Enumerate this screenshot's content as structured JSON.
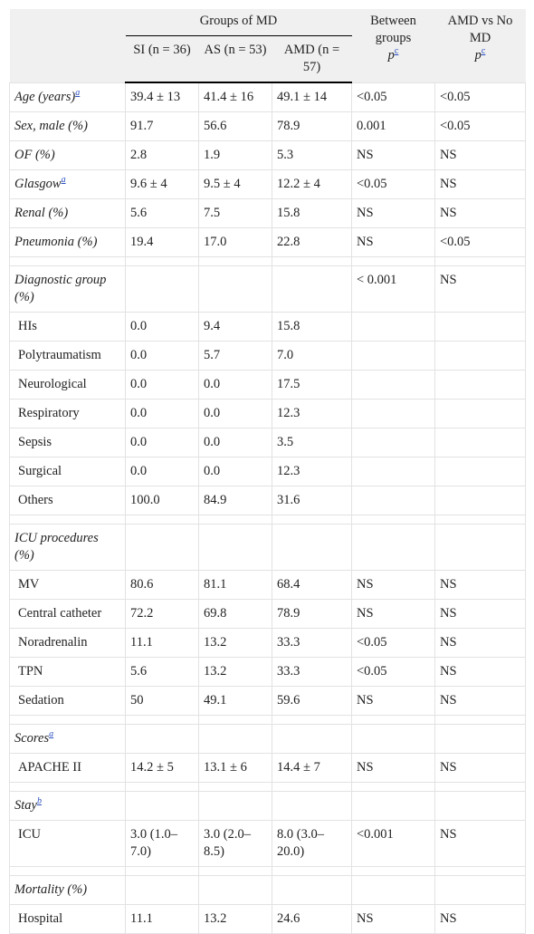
{
  "header": {
    "group_title": "Groups of MD",
    "between": "Between groups",
    "between_p": "p",
    "between_sup": "c",
    "amd_vs": "AMD vs No MD",
    "amd_p": "p",
    "amd_sup": "c",
    "cols": [
      "SI (n = 36)",
      "AS (n = 53)",
      "AMD (n = 57)"
    ]
  },
  "blocks": [
    {
      "rows": [
        {
          "label": "Age (years)",
          "sup": "a",
          "cells": [
            "39.4 ± 13",
            "41.4 ± 16",
            "49.1 ± 14",
            "<0.05",
            "<0.05"
          ]
        },
        {
          "label": "Sex, male (%)",
          "cells": [
            "91.7",
            "56.6",
            "78.9",
            "0.001",
            "<0.05"
          ]
        },
        {
          "label": "OF (%)",
          "cells": [
            "2.8",
            "1.9",
            "5.3",
            "NS",
            "NS"
          ]
        },
        {
          "label": "Glasgow",
          "sup": "a",
          "cells": [
            "9.6 ± 4",
            "9.5 ± 4",
            "12.2 ± 4",
            "<0.05",
            "NS"
          ]
        },
        {
          "label": "Renal (%)",
          "cells": [
            "5.6",
            "7.5",
            "15.8",
            "NS",
            "NS"
          ]
        },
        {
          "label": "Pneumonia (%)",
          "cells": [
            "19.4",
            "17.0",
            "22.8",
            "NS",
            "<0.05"
          ]
        }
      ]
    },
    {
      "heading": {
        "label": "Diagnostic group (%)",
        "cells": [
          null,
          null,
          null,
          "< 0.001",
          "NS"
        ]
      },
      "rows": [
        {
          "label": "HIs",
          "cells": [
            "0.0",
            "9.4",
            "15.8",
            null,
            null
          ]
        },
        {
          "label": "Polytraumatism",
          "cells": [
            "0.0",
            "5.7",
            "7.0",
            null,
            null
          ]
        },
        {
          "label": "Neurological",
          "cells": [
            "0.0",
            "0.0",
            "17.5",
            null,
            null
          ]
        },
        {
          "label": "Respiratory",
          "cells": [
            "0.0",
            "0.0",
            "12.3",
            null,
            null
          ]
        },
        {
          "label": "Sepsis",
          "cells": [
            "0.0",
            "0.0",
            "3.5",
            null,
            null
          ]
        },
        {
          "label": "Surgical",
          "cells": [
            "0.0",
            "0.0",
            "12.3",
            null,
            null
          ]
        },
        {
          "label": "Others",
          "cells": [
            "100.0",
            "84.9",
            "31.6",
            null,
            null
          ]
        }
      ]
    },
    {
      "heading": {
        "label": "ICU procedures (%)"
      },
      "rows": [
        {
          "label": "MV",
          "cells": [
            "80.6",
            "81.1",
            "68.4",
            "NS",
            "NS"
          ]
        },
        {
          "label": "Central catheter",
          "cells": [
            "72.2",
            "69.8",
            "78.9",
            "NS",
            "NS"
          ]
        },
        {
          "label": "Noradrenalin",
          "cells": [
            "11.1",
            "13.2",
            "33.3",
            "<0.05",
            "NS"
          ]
        },
        {
          "label": "TPN",
          "cells": [
            "5.6",
            "13.2",
            "33.3",
            "<0.05",
            "NS"
          ]
        },
        {
          "label": "Sedation",
          "cells": [
            "50",
            "49.1",
            "59.6",
            "NS",
            "NS"
          ]
        }
      ]
    },
    {
      "heading": {
        "label": "Scores",
        "sup": "a"
      },
      "rows": [
        {
          "label": "APACHE II",
          "cells": [
            "14.2 ± 5",
            "13.1 ± 6",
            "14.4 ± 7",
            "NS",
            "NS"
          ]
        }
      ]
    },
    {
      "heading": {
        "label": "Stay",
        "sup": "b"
      },
      "rows": [
        {
          "label": "ICU",
          "cells": [
            "3.0 (1.0–7.0)",
            "3.0 (2.0–8.5)",
            "8.0 (3.0–20.0)",
            "<0.001",
            "NS"
          ]
        }
      ]
    },
    {
      "heading": {
        "label": "Mortality (%)"
      },
      "rows": [
        {
          "label": "Hospital",
          "cells": [
            "11.1",
            "13.2",
            "24.6",
            "NS",
            "NS"
          ]
        }
      ]
    }
  ]
}
